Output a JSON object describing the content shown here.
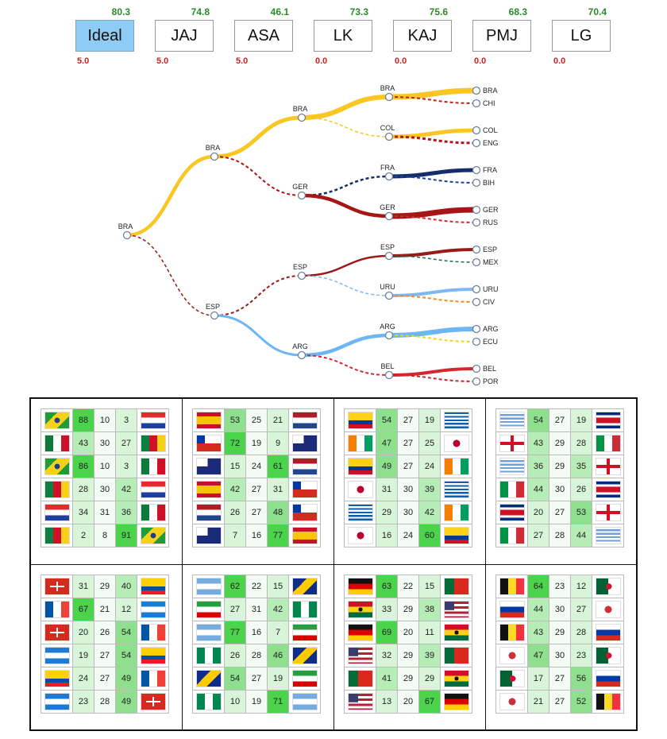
{
  "methods": [
    {
      "label": "Ideal",
      "score_top": "80.3",
      "score_bottom": "5.0",
      "active": true
    },
    {
      "label": "JAJ",
      "score_top": "74.8",
      "score_bottom": "5.0",
      "active": false
    },
    {
      "label": "ASA",
      "score_top": "46.1",
      "score_bottom": "5.0",
      "active": false
    },
    {
      "label": "LK",
      "score_top": "73.3",
      "score_bottom": "0.0",
      "active": false
    },
    {
      "label": "KAJ",
      "score_top": "75.6",
      "score_bottom": "0.0",
      "active": false
    },
    {
      "label": "PMJ",
      "score_top": "68.3",
      "score_bottom": "0.0",
      "active": false
    },
    {
      "label": "LG",
      "score_top": "70.4",
      "score_bottom": "0.0",
      "active": false
    }
  ],
  "team_colors": {
    "BRA": "#f9c623",
    "CHI": "#bf1e1e",
    "COL": "#f9c623",
    "ENG": "#b0151e",
    "FRA": "#162d6b",
    "BIH": "#1f3fa0",
    "GER": "#a81515",
    "RUS": "#d02a2a",
    "ESP": "#9a1a1a",
    "MEX": "#1e6b48",
    "URU": "#7fb7f0",
    "CIV": "#f08a1a",
    "ARG": "#6db6f4",
    "ECU": "#f2d21c",
    "BEL": "#d8262e",
    "POR": "#c9232b"
  },
  "bracket": {
    "leaves": [
      "BRA",
      "CHI",
      "COL",
      "ENG",
      "FRA",
      "BIH",
      "GER",
      "RUS",
      "ESP",
      "MEX",
      "URU",
      "CIV",
      "ARG",
      "ECU",
      "BEL",
      "POR"
    ],
    "quarters": [
      {
        "label": "BRA",
        "winner": 0,
        "w": [
          7,
          2
        ]
      },
      {
        "label": "COL",
        "winner": 0,
        "w": [
          5,
          3
        ]
      },
      {
        "label": "FRA",
        "winner": 0,
        "w": [
          5,
          2
        ]
      },
      {
        "label": "GER",
        "winner": 0,
        "w": [
          7,
          2
        ]
      },
      {
        "label": "ESP",
        "winner": 0,
        "w": [
          4,
          1.5
        ]
      },
      {
        "label": "URU",
        "winner": 0,
        "w": [
          4,
          2
        ]
      },
      {
        "label": "ARG",
        "winner": 0,
        "w": [
          6,
          2
        ]
      },
      {
        "label": "BEL",
        "winner": 0,
        "w": [
          4,
          2
        ]
      }
    ],
    "semis": [
      {
        "label": "BRA",
        "winner": 0,
        "w": [
          6,
          1.5
        ]
      },
      {
        "label": "GER",
        "winner": 1,
        "w": [
          2.5,
          4.5
        ]
      },
      {
        "label": "ESP",
        "winner": 0,
        "w": [
          2.5,
          1.5
        ]
      },
      {
        "label": "ARG",
        "winner": 0,
        "w": [
          4.5,
          2
        ]
      }
    ],
    "finals": [
      {
        "label": "BRA",
        "winner": 0,
        "w": [
          5,
          2
        ]
      },
      {
        "label": "ESP",
        "winner": 1,
        "w": [
          2,
          3
        ]
      }
    ],
    "champion": {
      "label": "BRA",
      "winner": 0,
      "w": [
        4.5,
        1.5
      ]
    }
  },
  "groups": [
    {
      "rows": [
        {
          "a": "BRA",
          "b": "CRO",
          "v": [
            "88",
            "10",
            "3"
          ]
        },
        {
          "a": "MEX",
          "b": "CMR",
          "v": [
            "43",
            "30",
            "27"
          ]
        },
        {
          "a": "BRA",
          "b": "MEX",
          "v": [
            "86",
            "10",
            "3"
          ]
        },
        {
          "a": "CMR",
          "b": "CRO",
          "v": [
            "28",
            "30",
            "42"
          ]
        },
        {
          "a": "CRO",
          "b": "MEX",
          "v": [
            "34",
            "31",
            "36"
          ]
        },
        {
          "a": "CMR",
          "b": "BRA",
          "v": [
            "2",
            "8",
            "91"
          ]
        }
      ]
    },
    {
      "rows": [
        {
          "a": "ESP",
          "b": "NED",
          "v": [
            "53",
            "25",
            "21"
          ]
        },
        {
          "a": "CHI",
          "b": "AUS",
          "v": [
            "72",
            "19",
            "9"
          ]
        },
        {
          "a": "AUS",
          "b": "NED",
          "v": [
            "15",
            "24",
            "61"
          ]
        },
        {
          "a": "ESP",
          "b": "CHI",
          "v": [
            "42",
            "27",
            "31"
          ]
        },
        {
          "a": "NED",
          "b": "CHI",
          "v": [
            "26",
            "27",
            "48"
          ]
        },
        {
          "a": "AUS",
          "b": "ESP",
          "v": [
            "7",
            "16",
            "77"
          ]
        }
      ]
    },
    {
      "rows": [
        {
          "a": "COL",
          "b": "GRE",
          "v": [
            "54",
            "27",
            "19"
          ]
        },
        {
          "a": "CIV",
          "b": "JPN",
          "v": [
            "47",
            "27",
            "25"
          ]
        },
        {
          "a": "COL",
          "b": "CIV",
          "v": [
            "49",
            "27",
            "24"
          ]
        },
        {
          "a": "JPN",
          "b": "GRE",
          "v": [
            "31",
            "30",
            "39"
          ]
        },
        {
          "a": "GRE",
          "b": "CIV",
          "v": [
            "29",
            "30",
            "42"
          ]
        },
        {
          "a": "JPN",
          "b": "COL",
          "v": [
            "16",
            "24",
            "60"
          ]
        }
      ]
    },
    {
      "rows": [
        {
          "a": "URU",
          "b": "CRC",
          "v": [
            "54",
            "27",
            "19"
          ]
        },
        {
          "a": "ENG",
          "b": "ITA",
          "v": [
            "43",
            "29",
            "28"
          ]
        },
        {
          "a": "URU",
          "b": "ENG",
          "v": [
            "36",
            "29",
            "35"
          ]
        },
        {
          "a": "ITA",
          "b": "CRC",
          "v": [
            "44",
            "30",
            "26"
          ]
        },
        {
          "a": "CRC",
          "b": "ENG",
          "v": [
            "20",
            "27",
            "53"
          ]
        },
        {
          "a": "ITA",
          "b": "URU",
          "v": [
            "27",
            "28",
            "44"
          ]
        }
      ]
    },
    {
      "rows": [
        {
          "a": "SUI",
          "b": "ECU",
          "v": [
            "31",
            "29",
            "40"
          ]
        },
        {
          "a": "FRA",
          "b": "HON",
          "v": [
            "67",
            "21",
            "12"
          ]
        },
        {
          "a": "SUI",
          "b": "FRA",
          "v": [
            "20",
            "26",
            "54"
          ]
        },
        {
          "a": "HON",
          "b": "ECU",
          "v": [
            "19",
            "27",
            "54"
          ]
        },
        {
          "a": "ECU",
          "b": "FRA",
          "v": [
            "24",
            "27",
            "49"
          ]
        },
        {
          "a": "HON",
          "b": "SUI",
          "v": [
            "23",
            "28",
            "49"
          ]
        }
      ]
    },
    {
      "rows": [
        {
          "a": "ARG",
          "b": "BIH",
          "v": [
            "62",
            "22",
            "15"
          ]
        },
        {
          "a": "IRN",
          "b": "NGA",
          "v": [
            "27",
            "31",
            "42"
          ]
        },
        {
          "a": "ARG",
          "b": "IRN",
          "v": [
            "77",
            "16",
            "7"
          ]
        },
        {
          "a": "NGA",
          "b": "BIH",
          "v": [
            "26",
            "28",
            "46"
          ]
        },
        {
          "a": "BIH",
          "b": "IRN",
          "v": [
            "54",
            "27",
            "19"
          ]
        },
        {
          "a": "NGA",
          "b": "ARG",
          "v": [
            "10",
            "19",
            "71"
          ]
        }
      ]
    },
    {
      "rows": [
        {
          "a": "GER",
          "b": "POR",
          "v": [
            "63",
            "22",
            "15"
          ]
        },
        {
          "a": "GHA",
          "b": "USA",
          "v": [
            "33",
            "29",
            "38"
          ]
        },
        {
          "a": "GER",
          "b": "GHA",
          "v": [
            "69",
            "20",
            "11"
          ]
        },
        {
          "a": "USA",
          "b": "POR",
          "v": [
            "32",
            "29",
            "39"
          ]
        },
        {
          "a": "POR",
          "b": "GHA",
          "v": [
            "41",
            "29",
            "29"
          ]
        },
        {
          "a": "USA",
          "b": "GER",
          "v": [
            "13",
            "20",
            "67"
          ]
        }
      ]
    },
    {
      "rows": [
        {
          "a": "BEL",
          "b": "ALG",
          "v": [
            "64",
            "23",
            "12"
          ]
        },
        {
          "a": "RUS",
          "b": "KOR",
          "v": [
            "44",
            "30",
            "27"
          ]
        },
        {
          "a": "BEL",
          "b": "RUS",
          "v": [
            "43",
            "29",
            "28"
          ]
        },
        {
          "a": "KOR",
          "b": "ALG",
          "v": [
            "47",
            "30",
            "23"
          ]
        },
        {
          "a": "ALG",
          "b": "RUS",
          "v": [
            "17",
            "27",
            "56"
          ]
        },
        {
          "a": "KOR",
          "b": "BEL",
          "v": [
            "21",
            "27",
            "52"
          ]
        }
      ]
    }
  ]
}
